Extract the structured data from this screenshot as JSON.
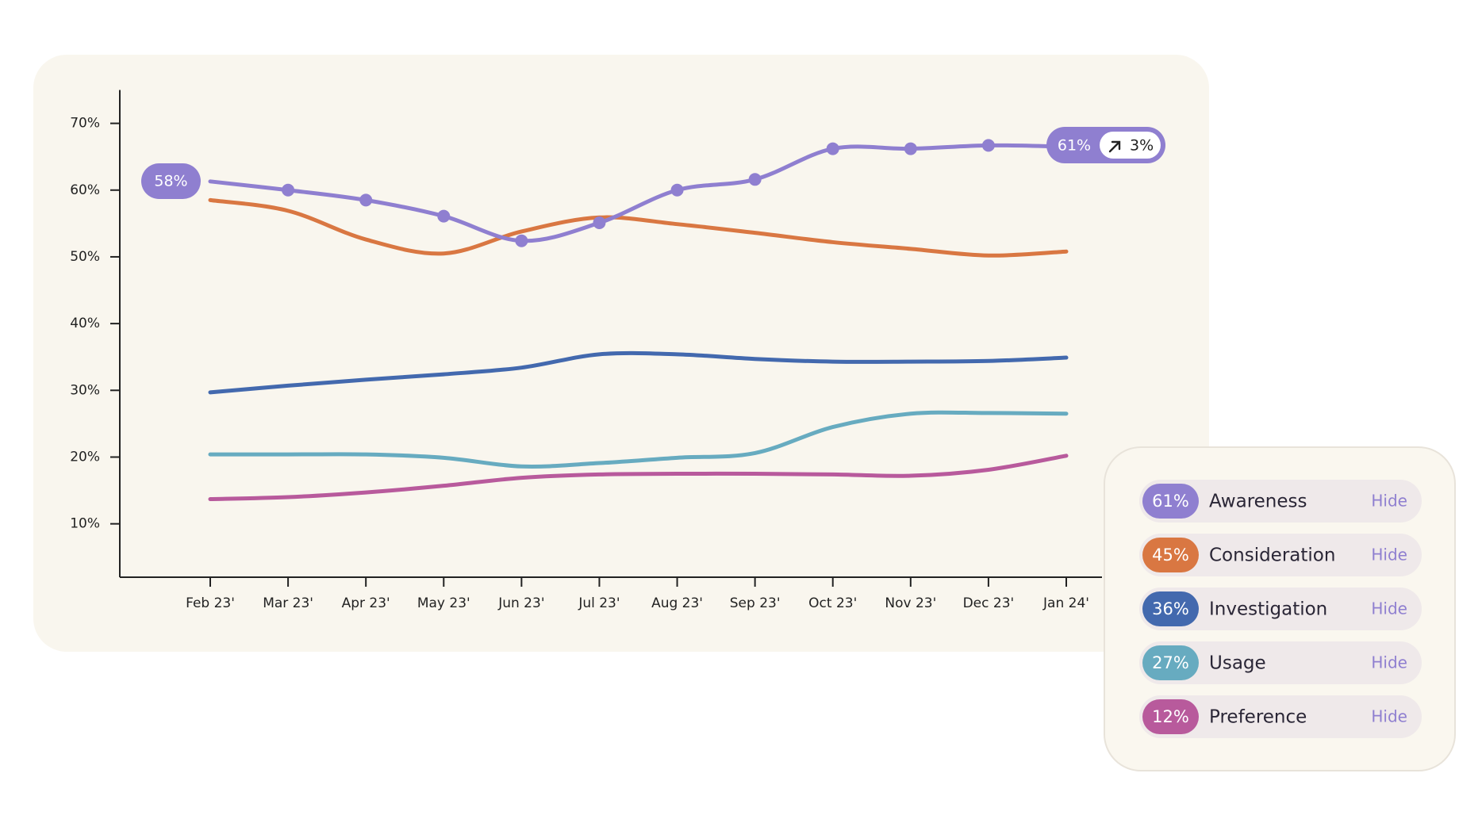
{
  "chart_data": {
    "type": "line",
    "categories": [
      "Feb 23'",
      "Mar 23'",
      "Apr 23'",
      "May 23'",
      "Jun 23'",
      "Jul 23'",
      "Aug 23'",
      "Sep 23'",
      "Oct 23'",
      "Nov 23'",
      "Dec 23'",
      "Jan 24'"
    ],
    "ylim": [
      2,
      75
    ],
    "yticks": [
      {
        "value": 10,
        "label": "10%"
      },
      {
        "value": 20,
        "label": "20%"
      },
      {
        "value": 30,
        "label": "30%"
      },
      {
        "value": 40,
        "label": "40%"
      },
      {
        "value": 50,
        "label": "50%"
      },
      {
        "value": 60,
        "label": "60%"
      },
      {
        "value": 70,
        "label": "70%"
      }
    ],
    "series": [
      {
        "name": "Awareness",
        "color": "#8f7fd0",
        "values": [
          61.3,
          60.0,
          58.5,
          56.1,
          52.4,
          55.1,
          60.0,
          61.6,
          66.2,
          66.2,
          66.7,
          66.5
        ],
        "legend_value": {
          "value": 61,
          "label": "61%"
        },
        "markers": true
      },
      {
        "name": "Consideration",
        "color": "#d97742",
        "values": [
          58.5,
          56.9,
          52.6,
          50.5,
          53.8,
          55.9,
          54.9,
          53.6,
          52.2,
          51.2,
          50.2,
          50.8
        ],
        "legend_value": {
          "value": 45,
          "label": "45%"
        }
      },
      {
        "name": "Investigation",
        "color": "#4369ae",
        "values": [
          29.7,
          30.7,
          31.6,
          32.4,
          33.4,
          35.4,
          35.4,
          34.7,
          34.3,
          34.3,
          34.4,
          34.9
        ],
        "legend_value": {
          "value": 36,
          "label": "36%"
        }
      },
      {
        "name": "Usage",
        "color": "#67abc0",
        "values": [
          20.4,
          20.4,
          20.4,
          19.9,
          18.6,
          19.1,
          19.9,
          20.6,
          24.5,
          26.5,
          26.6,
          26.5
        ],
        "legend_value": {
          "value": 27,
          "label": "27%"
        }
      },
      {
        "name": "Preference",
        "color": "#b85a9c",
        "values": [
          13.7,
          14.0,
          14.7,
          15.7,
          16.9,
          17.4,
          17.5,
          17.5,
          17.4,
          17.2,
          18.1,
          20.2
        ],
        "legend_value": {
          "value": 12,
          "label": "12%"
        }
      }
    ],
    "start_badge": {
      "value": 58,
      "label": "58%"
    },
    "end_badge": {
      "value": 61,
      "label": "61%"
    },
    "change_badge": {
      "value": 3,
      "label": "3%"
    },
    "hide_label": "Hide"
  }
}
